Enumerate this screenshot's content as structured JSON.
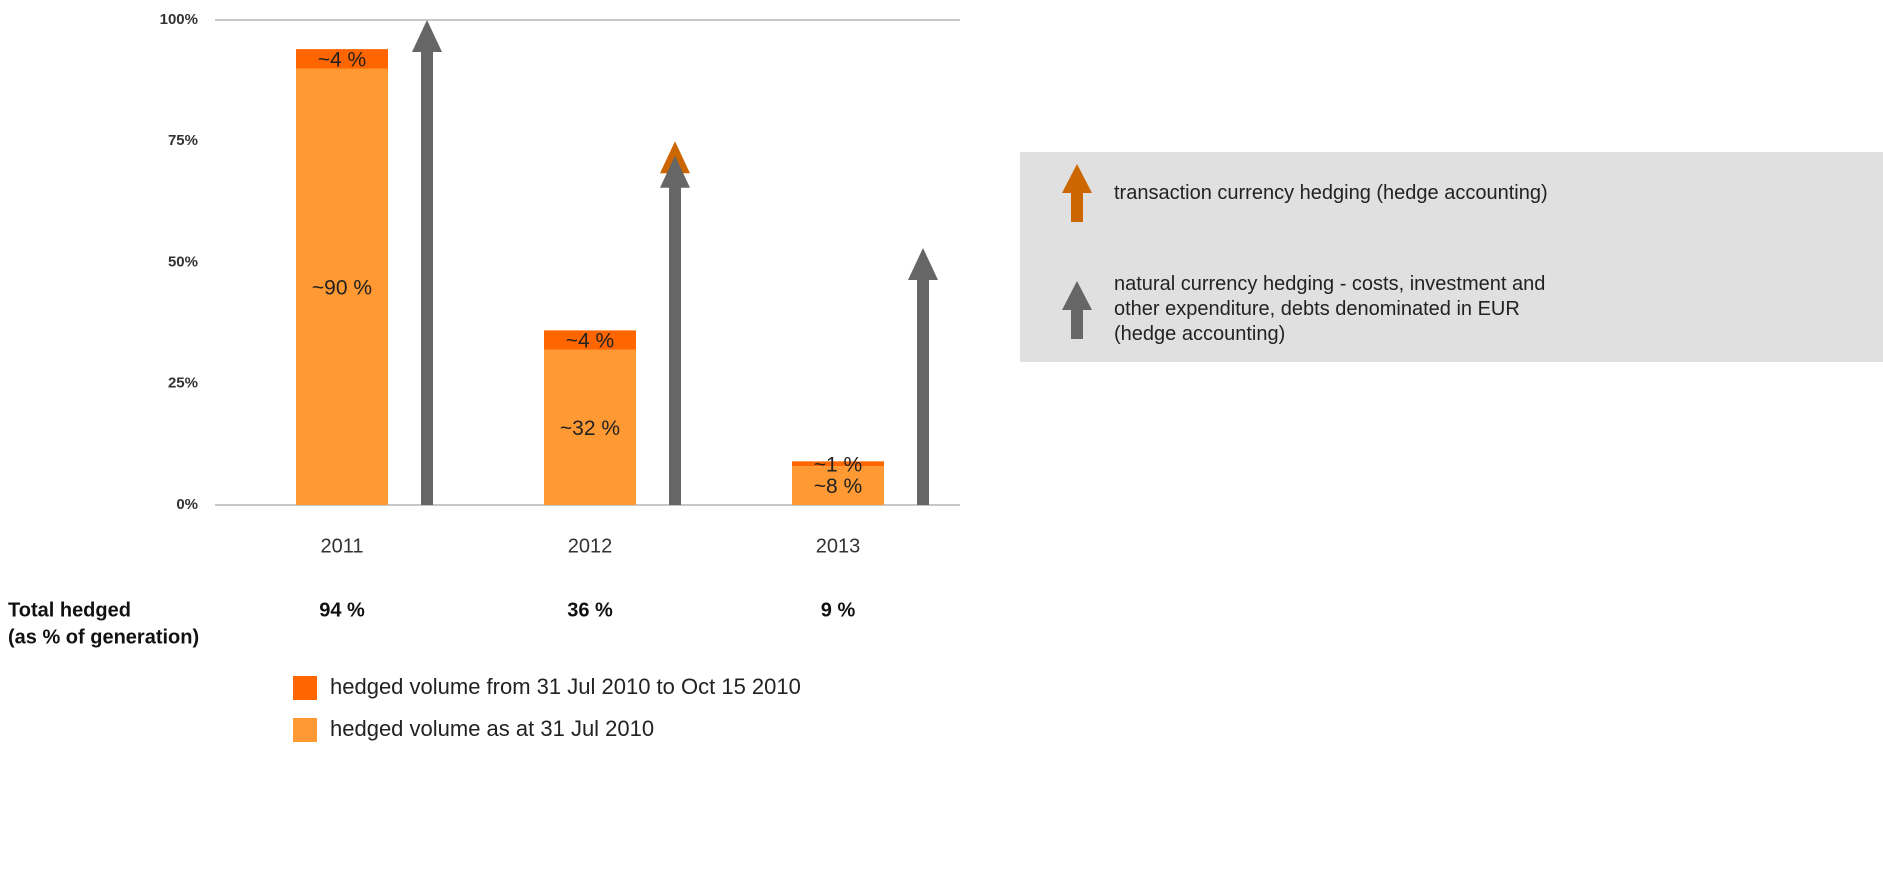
{
  "chart_data": {
    "type": "bar",
    "stacked": true,
    "categories": [
      "2011",
      "2012",
      "2013"
    ],
    "series": [
      {
        "name": "hedged volume as at 31 Jul 2010",
        "color": "#ff9933",
        "values": [
          90,
          32,
          8
        ],
        "value_labels": [
          "~90 %",
          "~32 %",
          "~8 %"
        ]
      },
      {
        "name": "hedged volume from 31 Jul 2010 to Oct 15 2010",
        "color": "#ff6600",
        "values": [
          4,
          4,
          1
        ],
        "value_labels": [
          "~4 %",
          "~4 %",
          "~1 %"
        ]
      }
    ],
    "arrows": [
      {
        "name": "natural currency hedging - costs, investment and other expenditure, debts denominated in EUR (hedge accounting)",
        "color": "#666666",
        "values": [
          100,
          72,
          53
        ]
      },
      {
        "name": "transaction currency hedging (hedge accounting)",
        "color": "#cc6600",
        "values": [
          null,
          75,
          null
        ]
      }
    ],
    "ylim": [
      0,
      100
    ],
    "yticks": [
      {
        "value": 0,
        "label": "0%"
      },
      {
        "value": 25,
        "label": "25%"
      },
      {
        "value": 50,
        "label": "50%"
      },
      {
        "value": 75,
        "label": "75%"
      },
      {
        "value": 100,
        "label": "100%"
      }
    ],
    "total_label": [
      "Total hedged",
      "(as % of generation)"
    ],
    "total_labels": [
      "94 %",
      "36 %",
      "9 %"
    ]
  }
}
